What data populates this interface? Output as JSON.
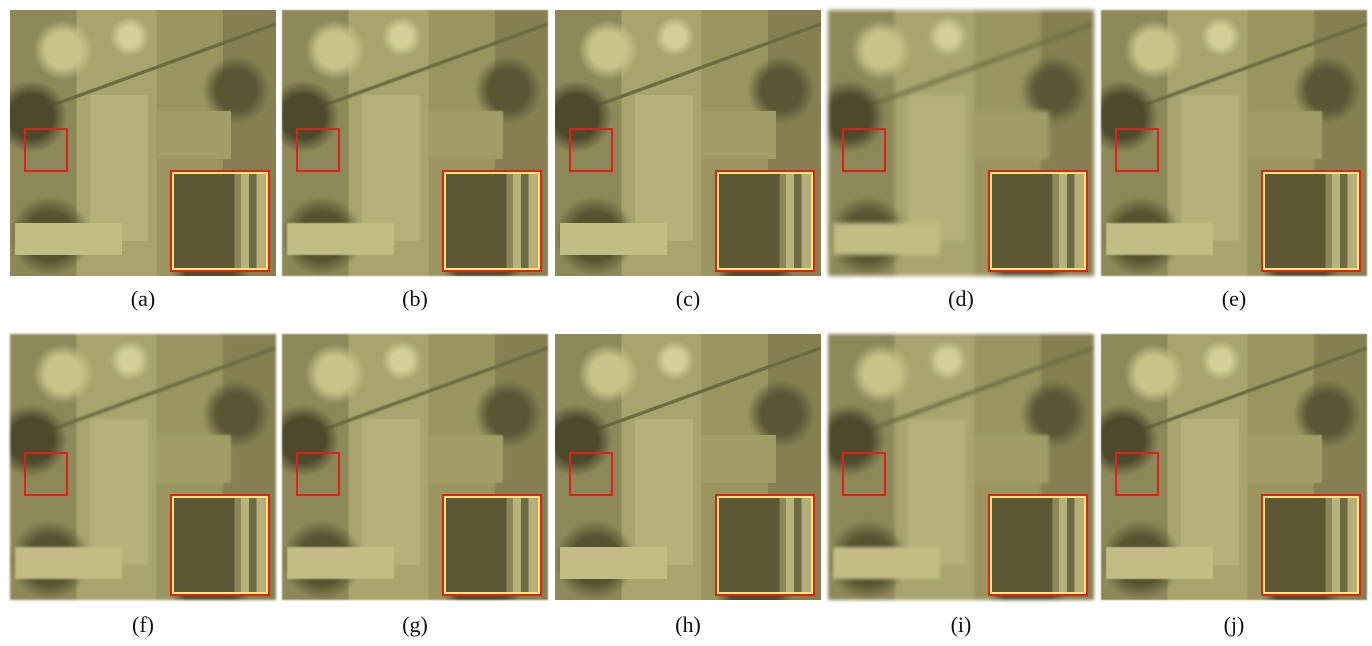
{
  "panels": [
    "(a)",
    "(b)",
    "(c)",
    "(d)",
    "(e)",
    "(f)",
    "(g)",
    "(h)",
    "(i)",
    "(j)"
  ]
}
